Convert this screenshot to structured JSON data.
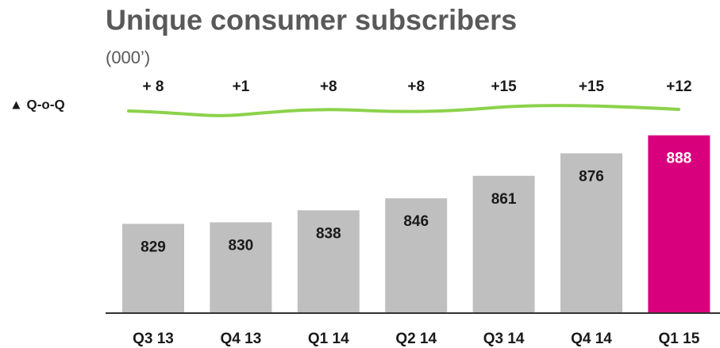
{
  "chart_data": {
    "type": "bar",
    "title": "Unique consumer subscribers",
    "subtitle": "(000’)",
    "categories": [
      "Q3 13",
      "Q4 13",
      "Q1 14",
      "Q2 14",
      "Q3 14",
      "Q4 14",
      "Q1 15"
    ],
    "values": [
      829,
      830,
      838,
      846,
      861,
      876,
      888
    ],
    "colors": [
      "#bfbfbf",
      "#bfbfbf",
      "#bfbfbf",
      "#bfbfbf",
      "#bfbfbf",
      "#bfbfbf",
      "#d9007e"
    ],
    "ylim": [
      770,
      900
    ],
    "qoq": {
      "label": "▲ Q-o-Q",
      "color": "#8cd24b",
      "values": [
        8,
        1,
        8,
        8,
        15,
        15,
        12
      ],
      "value_labels": [
        "+ 8",
        "+1",
        "+8",
        "+8",
        "+15",
        "+15",
        "+12"
      ]
    }
  }
}
